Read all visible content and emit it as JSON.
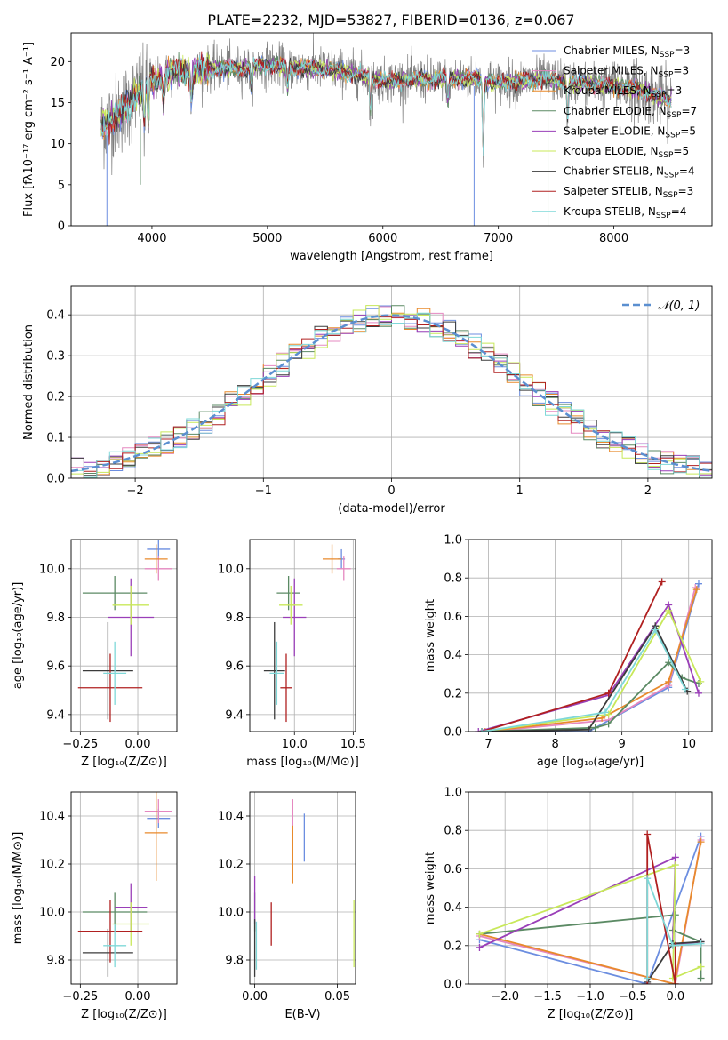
{
  "figure": {
    "suptitle": "PLATE=2232, MJD=53827, FIBERID=0136, z=0.067"
  },
  "colors": {
    "data": "#7f7f7f",
    "legend_colors": [
      "#6c8ee0",
      "#e588c0",
      "#e88a2c",
      "#5b8a64",
      "#9a3fb8",
      "#c8e85a",
      "#3b3b3b",
      "#b02020",
      "#7fd8d8"
    ],
    "gaussian": "#5b8fd0",
    "grid": "#b0b0b0"
  },
  "chart_data": [
    {
      "id": "spectrum",
      "type": "line",
      "title": "PLATE=2232, MJD=53827, FIBERID=0136, z=0.067",
      "xlabel": "wavelength [Angstrom, rest frame]",
      "ylabel": "Flux [fλ10⁻¹⁷ erg cm⁻² s⁻¹ A⁻¹]",
      "xlim": [
        3300,
        8850
      ],
      "ylim": [
        0,
        23.5
      ],
      "xticks": [
        4000,
        5000,
        6000,
        7000,
        8000
      ],
      "yticks": [
        0,
        5,
        10,
        15,
        20
      ],
      "grid": false,
      "legend": "top-right",
      "legend_entries": [
        {
          "name": "Chabrier MILES",
          "nssp": "3"
        },
        {
          "name": "Salpeter MILES",
          "nssp": "3"
        },
        {
          "name": "Kroupa MILES",
          "nssp": "3"
        },
        {
          "name": "Chabrier ELODIE",
          "nssp": "7"
        },
        {
          "name": "Salpeter ELODIE",
          "nssp": "5"
        },
        {
          "name": "Kroupa ELODIE",
          "nssp": "5"
        },
        {
          "name": "Chabrier STELIB",
          "nssp": "4"
        },
        {
          "name": "Salpeter STELIB",
          "nssp": "3"
        },
        {
          "name": "Kroupa STELIB",
          "nssp": "4"
        }
      ],
      "continuum_x": [
        3560,
        3700,
        3900,
        4000,
        4200,
        4400,
        4600,
        4800,
        5000,
        5200,
        5400,
        5600,
        5800,
        6000,
        6200,
        6400,
        6600,
        6800,
        7000,
        7200,
        7400,
        7600,
        7800,
        8000,
        8200,
        8400,
        8500
      ],
      "continuum_y": [
        12.0,
        13.5,
        16.5,
        17.5,
        18.8,
        18.9,
        19.2,
        19.2,
        19.6,
        19.3,
        19.2,
        18.9,
        18.4,
        17.6,
        17.8,
        17.8,
        17.9,
        17.9,
        17.4,
        17.6,
        17.9,
        17.4,
        17.3,
        17.0,
        16.6,
        15.7,
        15.2
      ]
    },
    {
      "id": "residuals",
      "type": "line",
      "xlabel": "(data-model)/error",
      "ylabel": "Normed distribution",
      "xlim": [
        -2.5,
        2.5
      ],
      "ylim": [
        0,
        0.47
      ],
      "xticks": [
        -2,
        -1,
        0,
        1,
        2
      ],
      "yticks": [
        0.0,
        0.1,
        0.2,
        0.3,
        0.4
      ],
      "grid": true,
      "legend": "top-right",
      "gaussian_label": "𝒩(0, 1)",
      "hist_bin_width": 0.1
    },
    {
      "id": "age-vs-z",
      "type": "scatter",
      "xlabel": "Z [log₁₀(Z/Z⊙)]",
      "ylabel": "age  [log₁₀(age/yr)]",
      "xlim": [
        -0.29,
        0.17
      ],
      "ylim": [
        9.33,
        10.12
      ],
      "xticks": [
        -0.25,
        0.0
      ],
      "yticks": [
        9.4,
        9.6,
        9.8,
        10.0
      ],
      "grid": true,
      "points": [
        {
          "x": 0.09,
          "xerr": 0.05,
          "y": 10.08,
          "yerr": 0.04
        },
        {
          "x": 0.09,
          "xerr": 0.06,
          "y": 10.0,
          "yerr": 0.05
        },
        {
          "x": 0.08,
          "xerr": 0.05,
          "y": 10.04,
          "yerr": 0.06
        },
        {
          "x": -0.1,
          "xerr": 0.14,
          "y": 9.9,
          "yerr": 0.07
        },
        {
          "x": -0.03,
          "xerr": 0.1,
          "y": 9.8,
          "yerr": 0.16
        },
        {
          "x": -0.03,
          "xerr": 0.08,
          "y": 9.85,
          "yerr": 0.08
        },
        {
          "x": -0.13,
          "xerr": 0.11,
          "y": 9.58,
          "yerr": 0.2
        },
        {
          "x": -0.12,
          "xerr": 0.14,
          "y": 9.51,
          "yerr": 0.14
        },
        {
          "x": -0.1,
          "xerr": 0.05,
          "y": 9.57,
          "yerr": 0.13
        }
      ]
    },
    {
      "id": "age-vs-mass",
      "type": "scatter",
      "xlabel": "mass [log₁₀(M/M⊙)]",
      "ylabel": "",
      "xlim": [
        9.62,
        10.52
      ],
      "ylim": [
        9.33,
        10.12
      ],
      "xticks": [
        10.0,
        10.5
      ],
      "yticks": [
        9.4,
        9.6,
        9.8,
        10.0
      ],
      "grid": true,
      "points": [
        {
          "x": 10.4,
          "xerr": 0.03,
          "y": 10.04,
          "yerr": 0.04
        },
        {
          "x": 10.42,
          "xerr": 0.06,
          "y": 10.0,
          "yerr": 0.05
        },
        {
          "x": 10.32,
          "xerr": 0.08,
          "y": 10.04,
          "yerr": 0.06
        },
        {
          "x": 9.95,
          "xerr": 0.1,
          "y": 9.9,
          "yerr": 0.07
        },
        {
          "x": 10.0,
          "xerr": 0.1,
          "y": 9.8,
          "yerr": 0.16
        },
        {
          "x": 9.97,
          "xerr": 0.1,
          "y": 9.85,
          "yerr": 0.08
        },
        {
          "x": 9.83,
          "xerr": 0.09,
          "y": 9.58,
          "yerr": 0.2
        },
        {
          "x": 9.93,
          "xerr": 0.05,
          "y": 9.51,
          "yerr": 0.14
        },
        {
          "x": 9.85,
          "xerr": 0.06,
          "y": 9.57,
          "yerr": 0.13
        }
      ]
    },
    {
      "id": "weight-vs-age",
      "type": "line",
      "xlabel": "age  [log₁₀(age/yr)]",
      "ylabel": "mass weight",
      "xlim": [
        6.7,
        10.35
      ],
      "ylim": [
        0.0,
        1.0
      ],
      "xticks": [
        7,
        8,
        9,
        10
      ],
      "yticks": [
        0.0,
        0.2,
        0.4,
        0.6,
        0.8,
        1.0
      ],
      "grid": true,
      "series": [
        {
          "x": [
            6.9,
            8.5,
            9.7,
            10.15
          ],
          "y": [
            0.0,
            0.0,
            0.23,
            0.77
          ]
        },
        {
          "x": [
            7.0,
            8.8,
            9.7,
            10.1
          ],
          "y": [
            0.0,
            0.06,
            0.24,
            0.75
          ]
        },
        {
          "x": [
            6.95,
            8.7,
            9.7,
            10.12
          ],
          "y": [
            0.0,
            0.07,
            0.26,
            0.74
          ]
        },
        {
          "x": [
            6.9,
            8.6,
            8.8,
            9.7,
            9.9,
            10.15
          ],
          "y": [
            0.0,
            0.02,
            0.04,
            0.36,
            0.28,
            0.25
          ]
        },
        {
          "x": [
            6.85,
            8.8,
            9.7,
            10.15
          ],
          "y": [
            0.0,
            0.19,
            0.66,
            0.2
          ]
        },
        {
          "x": [
            6.9,
            8.8,
            9.7,
            10.18
          ],
          "y": [
            0.0,
            0.09,
            0.63,
            0.26
          ]
        },
        {
          "x": [
            6.9,
            8.5,
            9.5,
            9.98
          ],
          "y": [
            0.0,
            0.01,
            0.55,
            0.21
          ]
        },
        {
          "x": [
            6.9,
            8.8,
            9.6
          ],
          "y": [
            0.0,
            0.2,
            0.78
          ]
        },
        {
          "x": [
            6.9,
            8.75,
            9.5,
            9.95
          ],
          "y": [
            0.0,
            0.1,
            0.53,
            0.22
          ]
        }
      ]
    },
    {
      "id": "mass-vs-z",
      "type": "scatter",
      "xlabel": "Z [log₁₀(Z/Z⊙)]",
      "ylabel": "mass [log₁₀(M/M⊙)]",
      "xlim": [
        -0.29,
        0.17
      ],
      "ylim": [
        9.7,
        10.5
      ],
      "xticks": [
        -0.25,
        0.0
      ],
      "yticks": [
        9.8,
        10.0,
        10.2,
        10.4
      ],
      "grid": true,
      "points": [
        {
          "x": 0.09,
          "xerr": 0.05,
          "y": 10.39,
          "yerr": 0.04
        },
        {
          "x": 0.09,
          "xerr": 0.06,
          "y": 10.42,
          "yerr": 0.05
        },
        {
          "x": 0.08,
          "xerr": 0.05,
          "y": 10.33,
          "yerr": 0.2
        },
        {
          "x": -0.1,
          "xerr": 0.14,
          "y": 10.0,
          "yerr": 0.08
        },
        {
          "x": -0.03,
          "xerr": 0.07,
          "y": 10.02,
          "yerr": 0.1
        },
        {
          "x": -0.03,
          "xerr": 0.08,
          "y": 9.95,
          "yerr": 0.09
        },
        {
          "x": -0.13,
          "xerr": 0.11,
          "y": 9.83,
          "yerr": 0.1
        },
        {
          "x": -0.12,
          "xerr": 0.14,
          "y": 9.92,
          "yerr": 0.13
        },
        {
          "x": -0.1,
          "xerr": 0.05,
          "y": 9.86,
          "yerr": 0.09
        }
      ]
    },
    {
      "id": "mass-vs-ebv",
      "type": "scatter",
      "xlabel": "E(B-V)",
      "ylabel": "",
      "xlim": [
        -0.003,
        0.061
      ],
      "ylim": [
        9.7,
        10.5
      ],
      "xticks": [
        0.0,
        0.05
      ],
      "yticks": [
        9.8,
        10.0,
        10.2,
        10.4
      ],
      "grid": true,
      "points": [
        {
          "x": 0.03,
          "xerr": 0.0,
          "y": 10.31,
          "yerr": 0.1
        },
        {
          "x": 0.023,
          "xerr": 0.0,
          "y": 10.36,
          "yerr": 0.11
        },
        {
          "x": 0.023,
          "xerr": 0.0,
          "y": 10.24,
          "yerr": 0.12
        },
        {
          "x": 0.0,
          "xerr": 0.0,
          "y": 10.0,
          "yerr": 0.08
        },
        {
          "x": 0.0,
          "xerr": 0.0,
          "y": 10.05,
          "yerr": 0.1
        },
        {
          "x": 0.06,
          "xerr": 0.0,
          "y": 9.91,
          "yerr": 0.14
        },
        {
          "x": 0.0,
          "xerr": 0.0,
          "y": 9.85,
          "yerr": 0.12
        },
        {
          "x": 0.01,
          "xerr": 0.0,
          "y": 9.95,
          "yerr": 0.09
        },
        {
          "x": 0.001,
          "xerr": 0.0,
          "y": 9.86,
          "yerr": 0.1
        }
      ]
    },
    {
      "id": "weight-vs-z",
      "type": "line",
      "xlabel": "Z [log₁₀(Z/Z⊙)]",
      "ylabel": "mass weight",
      "xlim": [
        -2.43,
        0.43
      ],
      "ylim": [
        0.0,
        1.0
      ],
      "xticks": [
        -2.0,
        -1.5,
        -1.0,
        -0.5,
        0.0
      ],
      "yticks": [
        0.0,
        0.2,
        0.4,
        0.6,
        0.8,
        1.0
      ],
      "grid": true,
      "series": [
        {
          "x": [
            -2.3,
            -0.33,
            0.3
          ],
          "y": [
            0.23,
            0.0,
            0.77
          ]
        },
        {
          "x": [
            -2.3,
            0.0,
            0.3
          ],
          "y": [
            0.25,
            0.0,
            0.75
          ]
        },
        {
          "x": [
            -2.3,
            -0.01,
            0.3
          ],
          "y": [
            0.26,
            0.0,
            0.74
          ]
        },
        {
          "x": [
            -2.3,
            0.0,
            -0.03,
            0.3,
            0.3
          ],
          "y": [
            0.26,
            0.36,
            0.28,
            0.22,
            0.03
          ]
        },
        {
          "x": [
            -2.3,
            0.0,
            -0.03,
            0.3
          ],
          "y": [
            0.19,
            0.66,
            0.2,
            0.22
          ]
        },
        {
          "x": [
            -2.3,
            0.0,
            -0.03,
            0.3
          ],
          "y": [
            0.26,
            0.62,
            0.03,
            0.09
          ]
        },
        {
          "x": [
            -0.33,
            -0.03,
            0.3
          ],
          "y": [
            0.01,
            0.21,
            0.22
          ]
        },
        {
          "x": [
            -0.33,
            -0.33,
            0.0,
            0.0
          ],
          "y": [
            0.0,
            0.78,
            0.0,
            0.2
          ]
        },
        {
          "x": [
            -0.33,
            -0.33,
            -0.03,
            0.3
          ],
          "y": [
            0.03,
            0.55,
            0.2,
            0.21
          ]
        }
      ]
    }
  ]
}
